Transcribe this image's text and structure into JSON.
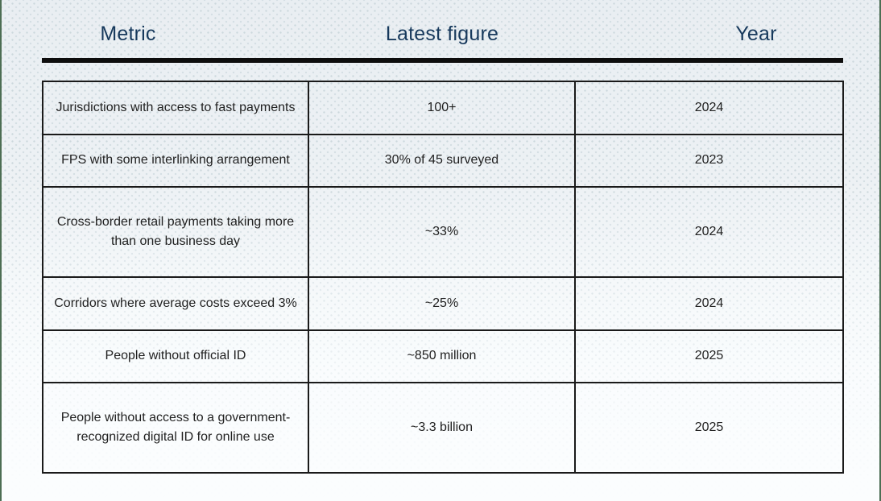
{
  "header": {
    "columns": [
      {
        "label": "Metric"
      },
      {
        "label": "Latest figure"
      },
      {
        "label": "Year"
      }
    ]
  },
  "chart_data": {
    "type": "table",
    "columns": [
      "Metric",
      "Latest figure",
      "Year"
    ],
    "rows": [
      {
        "metric": "Jurisdictions with access to fast payments",
        "figure": "100+",
        "year": "2024"
      },
      {
        "metric": "FPS with some interlinking arrangement",
        "figure": "30% of 45 surveyed",
        "year": "2023"
      },
      {
        "metric": "Cross-border retail payments taking more than one business day",
        "figure": "~33%",
        "year": "2024"
      },
      {
        "metric": "Corridors where average costs exceed 3%",
        "figure": "~25%",
        "year": "2024"
      },
      {
        "metric": "People without official ID",
        "figure": "~850 million",
        "year": "2025"
      },
      {
        "metric": "People without access to a government-recognized digital ID for online use",
        "figure": "~3.3 billion",
        "year": "2025"
      }
    ]
  },
  "colors": {
    "header_text": "#17395c",
    "body_text": "#212121",
    "thick_rule": "#0d0d0d",
    "table_border": "#1a1a1a",
    "background_top": "#e9eef2",
    "background_bottom": "#fbfdfe",
    "edge_border": "#4d6e54",
    "texture_dot": "#ccd8dd"
  }
}
